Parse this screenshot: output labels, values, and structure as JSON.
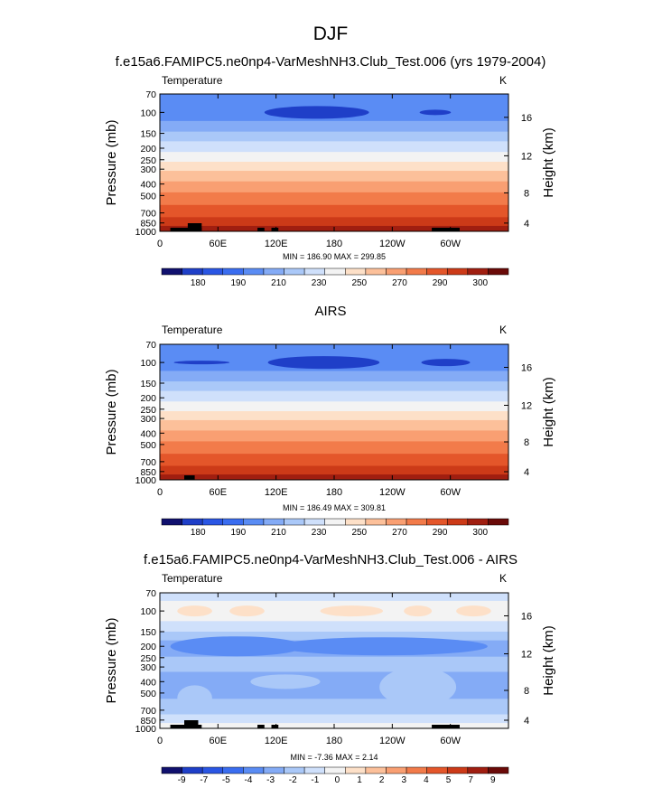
{
  "page": {
    "title": "DJF"
  },
  "chart_data": [
    {
      "type": "heatmap",
      "title": "f.e15a6.FAMIPC5.ne0np4-VarMeshNH3.Club_Test.006 (yrs 1979-2004)",
      "variable": "Temperature",
      "units": "K",
      "xlabel": "",
      "ylabel": "Pressure (mb)",
      "ylabel_right": "Height (km)",
      "x_ticks": [
        "0",
        "60E",
        "120E",
        "180",
        "120W",
        "60W"
      ],
      "y_ticks": [
        "70",
        "100",
        "150",
        "200",
        "250",
        "300",
        "400",
        "500",
        "700",
        "850",
        "1000"
      ],
      "height_ticks": [
        "16",
        "12",
        "8",
        "4"
      ],
      "stats": "MIN = 186.90  MAX = 299.85",
      "colorbar_labels": [
        "180",
        "190",
        "210",
        "230",
        "250",
        "270",
        "290",
        "300"
      ],
      "colorbar_colors": [
        "#10106e",
        "#1f3fc8",
        "#2a56e4",
        "#3a6df0",
        "#5a8cf4",
        "#84abf6",
        "#aac8f8",
        "#cfe0fb",
        "#f3f3f3",
        "#fde0c8",
        "#fcc09a",
        "#f99f72",
        "#f27b4a",
        "#e4562a",
        "#cc3a18",
        "#a01e10",
        "#6a0a08"
      ]
    },
    {
      "type": "heatmap",
      "title": "AIRS",
      "variable": "Temperature",
      "units": "K",
      "xlabel": "",
      "ylabel": "Pressure (mb)",
      "ylabel_right": "Height (km)",
      "x_ticks": [
        "0",
        "60E",
        "120E",
        "180",
        "120W",
        "60W"
      ],
      "y_ticks": [
        "70",
        "100",
        "150",
        "200",
        "250",
        "300",
        "400",
        "500",
        "700",
        "850",
        "1000"
      ],
      "height_ticks": [
        "16",
        "12",
        "8",
        "4"
      ],
      "stats": "MIN = 186.49  MAX = 309.81",
      "colorbar_labels": [
        "180",
        "190",
        "210",
        "230",
        "250",
        "270",
        "290",
        "300"
      ],
      "colorbar_colors": [
        "#10106e",
        "#1f3fc8",
        "#2a56e4",
        "#3a6df0",
        "#5a8cf4",
        "#84abf6",
        "#aac8f8",
        "#cfe0fb",
        "#f3f3f3",
        "#fde0c8",
        "#fcc09a",
        "#f99f72",
        "#f27b4a",
        "#e4562a",
        "#cc3a18",
        "#a01e10",
        "#6a0a08"
      ]
    },
    {
      "type": "heatmap",
      "title": "f.e15a6.FAMIPC5.ne0np4-VarMeshNH3.Club_Test.006 - AIRS",
      "variable": "Temperature",
      "units": "K",
      "xlabel": "",
      "ylabel": "Pressure (mb)",
      "ylabel_right": "Height (km)",
      "x_ticks": [
        "0",
        "60E",
        "120E",
        "180",
        "120W",
        "60W"
      ],
      "y_ticks": [
        "70",
        "100",
        "150",
        "200",
        "250",
        "300",
        "400",
        "500",
        "700",
        "850",
        "1000"
      ],
      "height_ticks": [
        "16",
        "12",
        "8",
        "4"
      ],
      "stats": "MIN = -7.36  MAX =  2.14",
      "colorbar_labels": [
        "-9",
        "-7",
        "-5",
        "-4",
        "-3",
        "-2",
        "-1",
        "0",
        "1",
        "2",
        "3",
        "4",
        "5",
        "7",
        "9"
      ],
      "colorbar_colors": [
        "#10106e",
        "#1f3fc8",
        "#2a56e4",
        "#3a6df0",
        "#5a8cf4",
        "#84abf6",
        "#aac8f8",
        "#cfe0fb",
        "#f3f3f3",
        "#fde0c8",
        "#fcc09a",
        "#f99f72",
        "#f27b4a",
        "#e4562a",
        "#cc3a18",
        "#a01e10",
        "#6a0a08"
      ]
    }
  ]
}
